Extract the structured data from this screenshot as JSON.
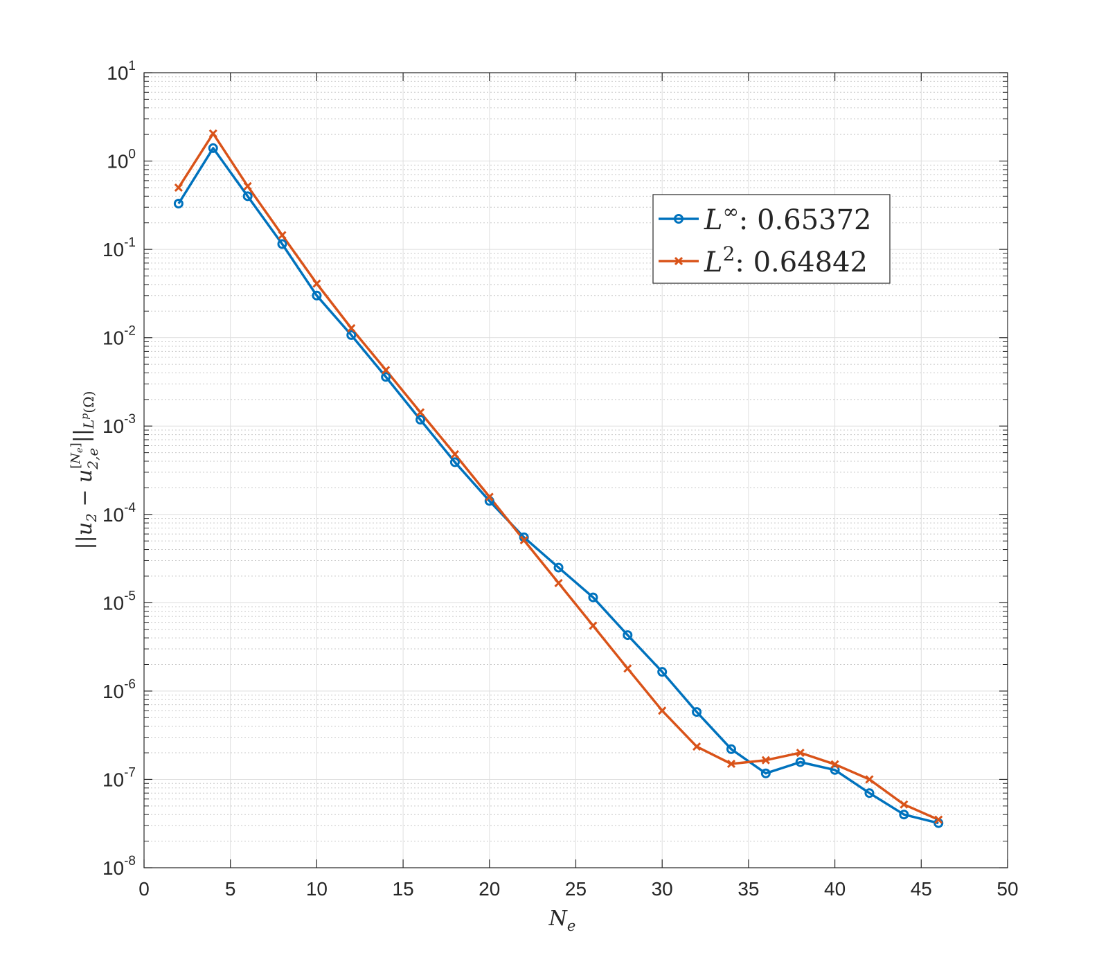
{
  "chart_data": {
    "type": "line",
    "xlabel": "N_e",
    "ylabel": "||u_2 - u_{2,e}^{[N_e]}||_{L^p(Ω)}",
    "xlim": [
      0,
      50
    ],
    "ylim": [
      1e-08,
      10
    ],
    "yscale": "log",
    "grid": true,
    "minor_grid": true,
    "x_ticks": [
      "0",
      "5",
      "10",
      "15",
      "20",
      "25",
      "30",
      "35",
      "40",
      "45",
      "50"
    ],
    "y_ticks": [
      {
        "base": "10",
        "exp": "1",
        "value": 10
      },
      {
        "base": "10",
        "exp": "0",
        "value": 1
      },
      {
        "base": "10",
        "exp": "-1",
        "value": 0.1
      },
      {
        "base": "10",
        "exp": "-2",
        "value": 0.01
      },
      {
        "base": "10",
        "exp": "-3",
        "value": 0.001
      },
      {
        "base": "10",
        "exp": "-4",
        "value": 0.0001
      },
      {
        "base": "10",
        "exp": "-5",
        "value": 1e-05
      },
      {
        "base": "10",
        "exp": "-6",
        "value": 1e-06
      },
      {
        "base": "10",
        "exp": "-7",
        "value": 1e-07
      },
      {
        "base": "10",
        "exp": "-8",
        "value": 1e-08
      }
    ],
    "legend_position": "top-right",
    "x": [
      2,
      4,
      6,
      8,
      10,
      12,
      14,
      16,
      18,
      20,
      22,
      24,
      26,
      28,
      30,
      32,
      34,
      36,
      38,
      40,
      42,
      44,
      46
    ],
    "series": [
      {
        "name": "L^∞: 0.65372",
        "sup": "∞",
        "value_label": "0.65372",
        "color": "#0072BD",
        "marker": "circle",
        "values": [
          0.33,
          1.4,
          0.4,
          0.115,
          0.03,
          0.0107,
          0.0036,
          0.00118,
          0.00039,
          0.000142,
          5.5e-05,
          2.5e-05,
          1.15e-05,
          4.3e-06,
          1.65e-06,
          5.8e-07,
          2.2e-07,
          1.17e-07,
          1.57e-07,
          1.28e-07,
          7e-08,
          4e-08,
          3.2e-08
        ]
      },
      {
        "name": "L^2: 0.64842",
        "sup": "2",
        "value_label": "0.64842",
        "color": "#D95319",
        "marker": "x",
        "values": [
          0.5,
          2.05,
          0.52,
          0.145,
          0.041,
          0.0128,
          0.0043,
          0.00143,
          0.00048,
          0.000158,
          5.1e-05,
          1.67e-05,
          5.5e-06,
          1.8e-06,
          6e-07,
          2.35e-07,
          1.5e-07,
          1.65e-07,
          2e-07,
          1.48e-07,
          1e-07,
          5.2e-08,
          3.5e-08
        ]
      }
    ]
  }
}
